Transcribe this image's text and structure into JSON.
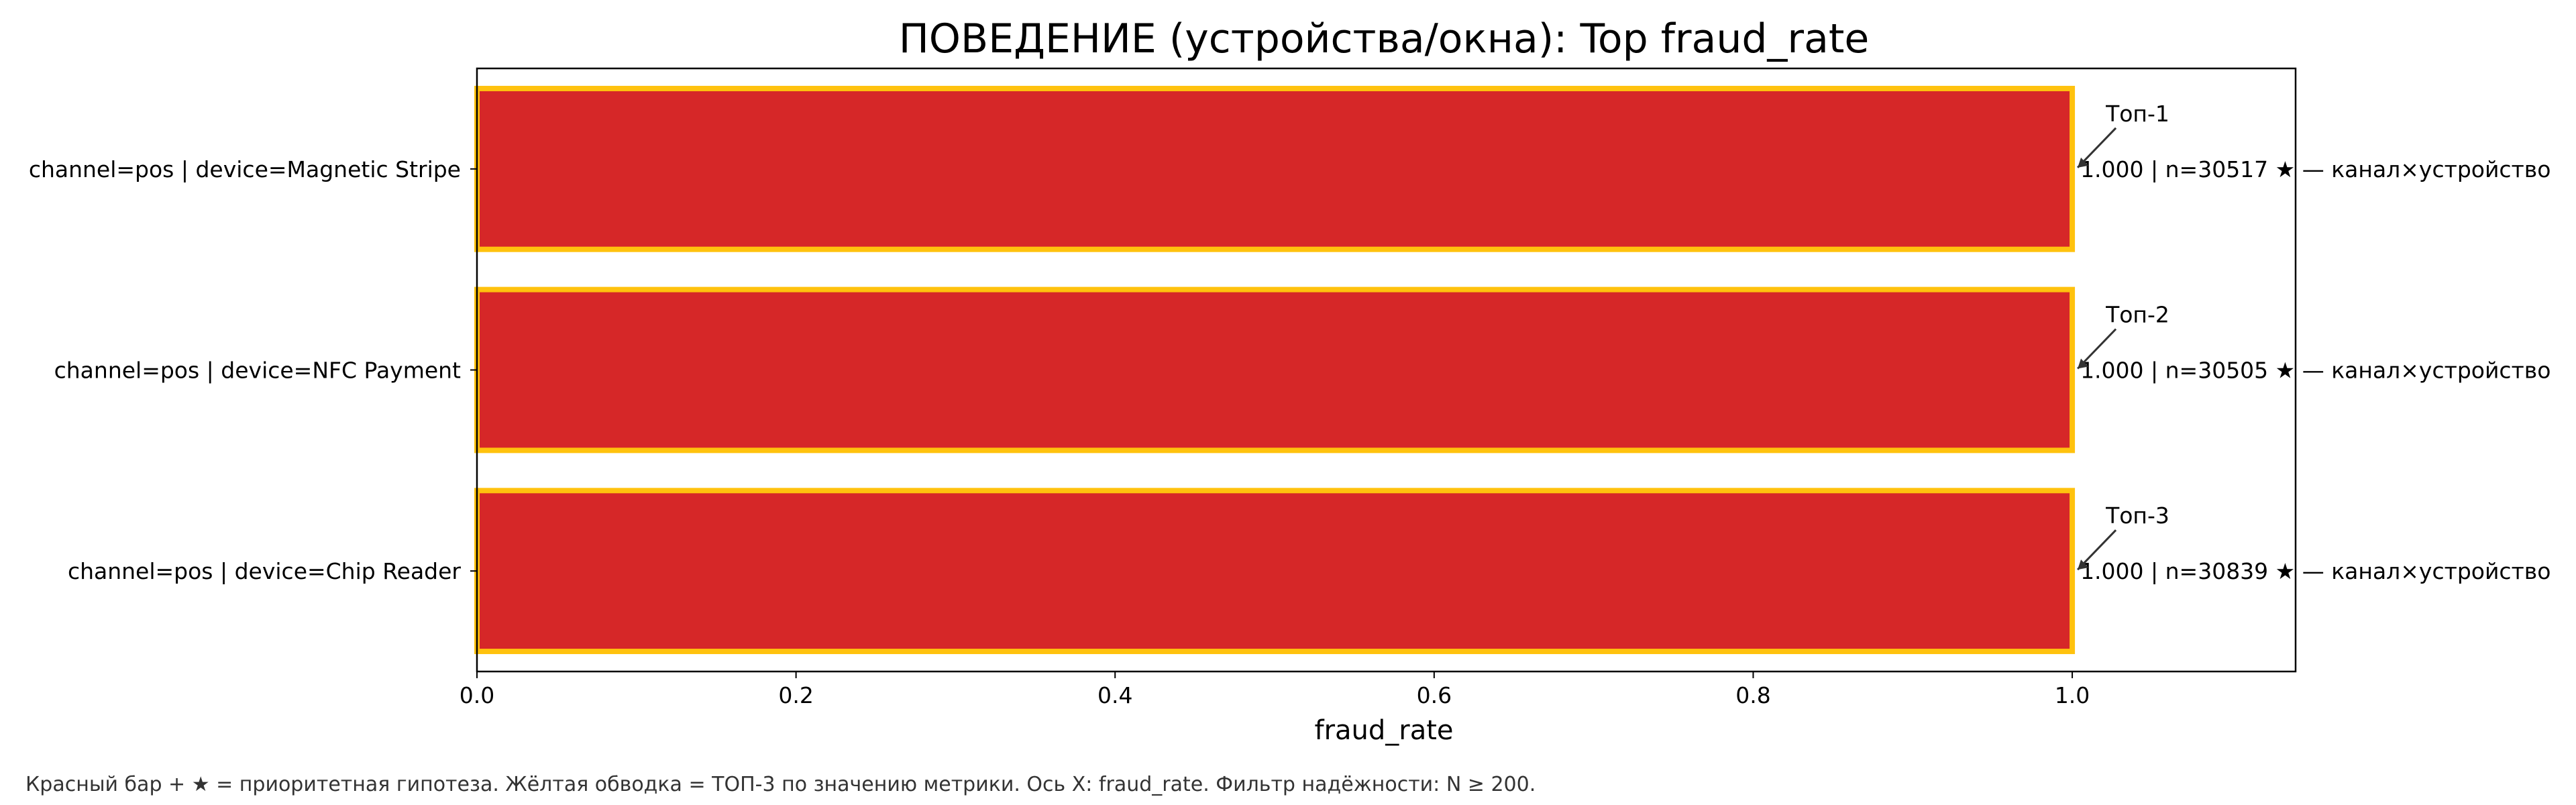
{
  "chart_data": {
    "type": "bar",
    "orientation": "horizontal",
    "title": "ПОВЕДЕНИЕ (устройства/окна): Top fraud_rate",
    "xlabel": "fraud_rate",
    "ylabel": "",
    "xlim": [
      0.0,
      1.14
    ],
    "xticks": [
      "0.0",
      "0.2",
      "0.4",
      "0.6",
      "0.8",
      "1.0"
    ],
    "xtick_values": [
      0.0,
      0.2,
      0.4,
      0.6,
      0.8,
      1.0
    ],
    "grid": false,
    "categories": [
      "channel=pos | device=Magnetic Stripe",
      "channel=pos | device=NFC Payment",
      "channel=pos | device=Chip Reader"
    ],
    "values": [
      1.0,
      1.0,
      1.0
    ],
    "value_labels": [
      "1.000 | n=30517  ★  —  канал×устройство",
      "1.000 | n=30505  ★  —  канал×устройство",
      "1.000 | n=30839  ★  —  канал×устройство"
    ],
    "annotations": [
      "Топ-1",
      "Топ-2",
      "Топ-3"
    ],
    "bar_color": "#d62728",
    "highlight_color": "#ffc20e"
  },
  "footnote": "Красный бар + ★ = приоритетная гипотеза.  Жёлтая обводка = ТОП-3 по значению метрики.  Ось X: fraud_rate.  Фильтр надёжности: N ≥ 200."
}
